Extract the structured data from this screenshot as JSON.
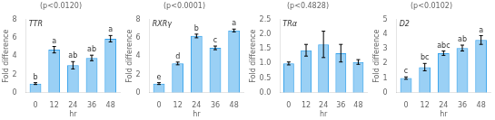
{
  "chart_data": [
    {
      "type": "bar",
      "title": "TTR",
      "subtitle": "(p<0.0120)",
      "x_label": "hr",
      "y_label": "Fold difference",
      "categories": [
        "0",
        "12",
        "24",
        "36",
        "48"
      ],
      "values": [
        1.0,
        4.7,
        3.0,
        3.8,
        5.9
      ],
      "errors": [
        0.1,
        0.35,
        0.4,
        0.3,
        0.35
      ],
      "annotations": [
        "b",
        "a",
        "ab",
        "ab",
        "a"
      ],
      "ylim": [
        0,
        8
      ],
      "yticks": [
        0,
        2,
        4,
        6,
        8
      ],
      "grid": false
    },
    {
      "type": "bar",
      "title": "RXRγ",
      "subtitle": "(p<0.0001)",
      "x_label": "hr",
      "y_label": "Fold difference",
      "categories": [
        "0",
        "12",
        "24",
        "36",
        "48"
      ],
      "values": [
        1.0,
        3.2,
        6.2,
        4.9,
        6.8
      ],
      "errors": [
        0.1,
        0.15,
        0.2,
        0.2,
        0.15
      ],
      "annotations": [
        "e",
        "d",
        "b",
        "c",
        "a"
      ],
      "ylim": [
        0,
        8
      ],
      "yticks": [
        0,
        2,
        4,
        6,
        8
      ],
      "grid": false
    },
    {
      "type": "bar",
      "title": "TRα",
      "subtitle": "(p<0.4828)",
      "x_label": "hr",
      "y_label": "Fold difference",
      "categories": [
        "0",
        "12",
        "24",
        "36",
        "48"
      ],
      "values": [
        1.0,
        1.45,
        1.65,
        1.35,
        1.05
      ],
      "errors": [
        0.05,
        0.2,
        0.45,
        0.3,
        0.08
      ],
      "ylim": [
        0,
        2.5
      ],
      "yticks": [
        {
          "value": 0,
          "label": "0.0"
        },
        0.5,
        {
          "value": 1,
          "label": "1.0"
        },
        1.5,
        {
          "value": 2,
          "label": "2.0"
        },
        2.5
      ],
      "grid": false
    },
    {
      "type": "bar",
      "title": "D2",
      "subtitle": "(p<0.0102)",
      "x_label": "hr",
      "y_label": "Fold difference",
      "categories": [
        "0",
        "12",
        "24",
        "36",
        "48"
      ],
      "values": [
        1.0,
        1.75,
        2.7,
        3.05,
        3.6
      ],
      "errors": [
        0.08,
        0.25,
        0.15,
        0.2,
        0.3
      ],
      "annotations": [
        "c",
        "bc",
        "abc",
        "ab",
        "a"
      ],
      "ylim": [
        0,
        5
      ],
      "yticks": [
        0,
        1,
        2,
        3,
        4,
        5
      ],
      "grid": false
    }
  ]
}
